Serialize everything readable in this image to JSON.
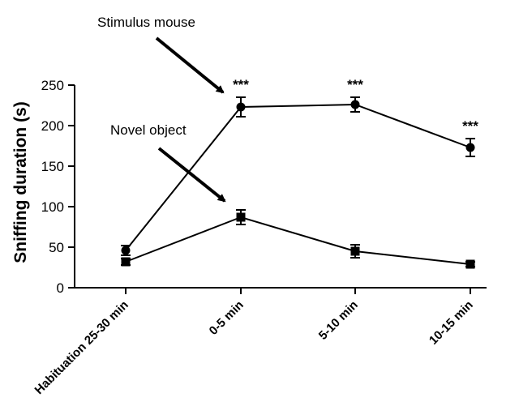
{
  "chart_data": {
    "type": "line",
    "categories": [
      "Habituation 25-30 min",
      "0-5 min",
      "5-10 min",
      "10-15 min"
    ],
    "ylabel": "Sniffing duration (s)",
    "ylim": [
      0,
      250
    ],
    "yticks": [
      0,
      50,
      100,
      150,
      200,
      250
    ],
    "grid": false,
    "series": [
      {
        "name": "Stimulus mouse",
        "marker": "circle",
        "values": [
          46,
          223,
          226,
          173
        ],
        "errors": [
          6,
          12,
          9,
          11
        ]
      },
      {
        "name": "Novel object",
        "marker": "square",
        "values": [
          32,
          87,
          45,
          29
        ],
        "errors": [
          4,
          9,
          8,
          3
        ]
      }
    ],
    "significance": [
      {
        "category_index": 1,
        "label": "***"
      },
      {
        "category_index": 2,
        "label": "***"
      },
      {
        "category_index": 3,
        "label": "***"
      }
    ],
    "annotations": {
      "stimulus_mouse": "Stimulus mouse",
      "novel_object": "Novel object"
    }
  }
}
